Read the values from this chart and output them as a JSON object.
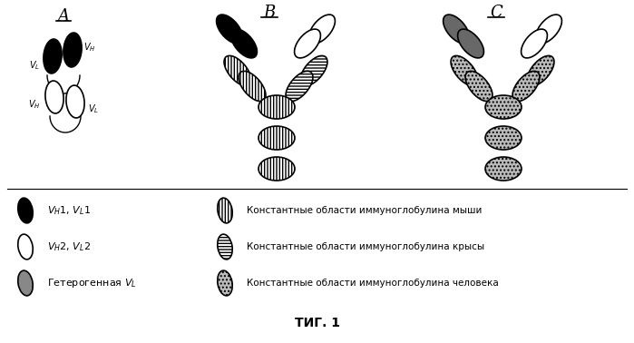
{
  "title": "ΤИГ. 1",
  "background_color": "#ffffff",
  "panel_labels": [
    "A",
    "B",
    "C"
  ],
  "legend_left": [
    "V$_H$1, V$_L$1",
    "V$_H$2, V$_L$2",
    "Гетерогенная V$_L$"
  ],
  "legend_right": [
    "Константные области иммуноглобулина мыши",
    "Константные области иммуноглобулина крысы",
    "Константные области иммуноглобулина человека"
  ]
}
